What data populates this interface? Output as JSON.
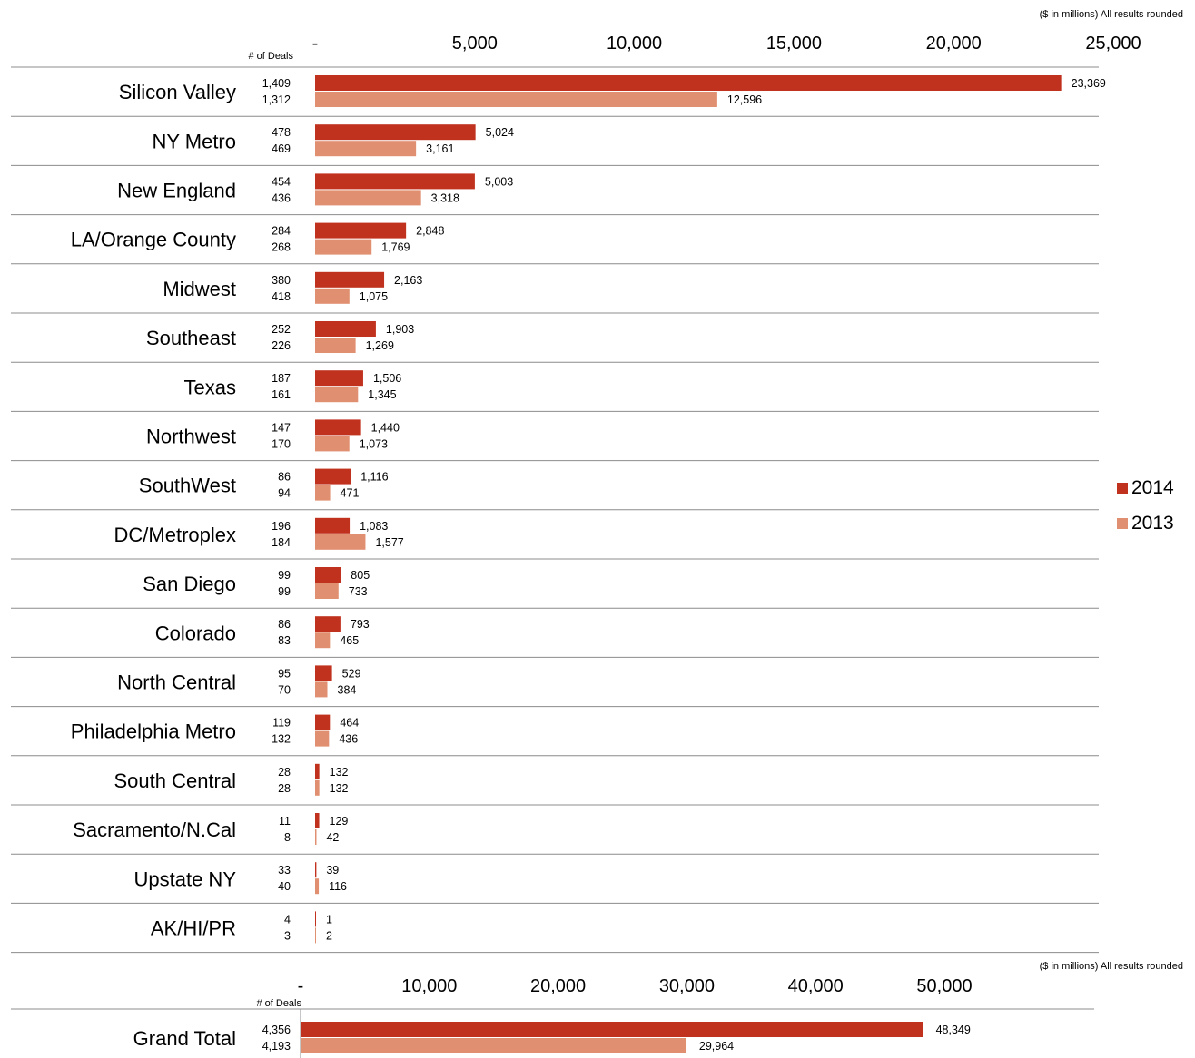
{
  "chart_data": [
    {
      "type": "bar",
      "orientation": "horizontal",
      "note": "($ in millions) All results rounded",
      "deals_label": "# of  Deals",
      "xlim": [
        0,
        25000
      ],
      "ticks": [
        "-",
        "5,000",
        "10,000",
        "15,000",
        "20,000",
        "25,000"
      ],
      "tick_values": [
        0,
        5000,
        10000,
        15000,
        20000,
        25000
      ],
      "legend_position": "right",
      "series": [
        {
          "name": "2014",
          "color": "#c0311e"
        },
        {
          "name": "2013",
          "color": "#e08f70"
        }
      ],
      "categories": [
        {
          "label": "Silicon Valley",
          "deals": [
            "1,409",
            "1,312"
          ],
          "values": [
            23369,
            12596
          ],
          "labels": [
            "23,369",
            "12,596"
          ]
        },
        {
          "label": "NY Metro",
          "deals": [
            "478",
            "469"
          ],
          "values": [
            5024,
            3161
          ],
          "labels": [
            "5,024",
            "3,161"
          ]
        },
        {
          "label": "New England",
          "deals": [
            "454",
            "436"
          ],
          "values": [
            5003,
            3318
          ],
          "labels": [
            "5,003",
            "3,318"
          ]
        },
        {
          "label": "LA/Orange County",
          "deals": [
            "284",
            "268"
          ],
          "values": [
            2848,
            1769
          ],
          "labels": [
            "2,848",
            "1,769"
          ]
        },
        {
          "label": "Midwest",
          "deals": [
            "380",
            "418"
          ],
          "values": [
            2163,
            1075
          ],
          "labels": [
            "2,163",
            "1,075"
          ]
        },
        {
          "label": "Southeast",
          "deals": [
            "252",
            "226"
          ],
          "values": [
            1903,
            1269
          ],
          "labels": [
            "1,903",
            "1,269"
          ]
        },
        {
          "label": "Texas",
          "deals": [
            "187",
            "161"
          ],
          "values": [
            1506,
            1345
          ],
          "labels": [
            "1,506",
            "1,345"
          ]
        },
        {
          "label": "Northwest",
          "deals": [
            "147",
            "170"
          ],
          "values": [
            1440,
            1073
          ],
          "labels": [
            "1,440",
            "1,073"
          ]
        },
        {
          "label": "SouthWest",
          "deals": [
            "86",
            "94"
          ],
          "values": [
            1116,
            471
          ],
          "labels": [
            "1,116",
            "471"
          ]
        },
        {
          "label": "DC/Metroplex",
          "deals": [
            "196",
            "184"
          ],
          "values": [
            1083,
            1577
          ],
          "labels": [
            "1,083",
            "1,577"
          ]
        },
        {
          "label": "San Diego",
          "deals": [
            "99",
            "99"
          ],
          "values": [
            805,
            733
          ],
          "labels": [
            "805",
            "733"
          ]
        },
        {
          "label": "Colorado",
          "deals": [
            "86",
            "83"
          ],
          "values": [
            793,
            465
          ],
          "labels": [
            "793",
            "465"
          ]
        },
        {
          "label": "North Central",
          "deals": [
            "95",
            "70"
          ],
          "values": [
            529,
            384
          ],
          "labels": [
            "529",
            "384"
          ]
        },
        {
          "label": "Philadelphia Metro",
          "deals": [
            "119",
            "132"
          ],
          "values": [
            464,
            436
          ],
          "labels": [
            "464",
            "436"
          ]
        },
        {
          "label": "South Central",
          "deals": [
            "28",
            "28"
          ],
          "values": [
            132,
            132
          ],
          "labels": [
            "132",
            "132"
          ]
        },
        {
          "label": "Sacramento/N.Cal",
          "deals": [
            "11",
            "8"
          ],
          "values": [
            129,
            42
          ],
          "labels": [
            "129",
            "42"
          ]
        },
        {
          "label": "Upstate NY",
          "deals": [
            "33",
            "40"
          ],
          "values": [
            39,
            116
          ],
          "labels": [
            "39",
            "116"
          ]
        },
        {
          "label": "AK/HI/PR",
          "deals": [
            "4",
            "3"
          ],
          "values": [
            1,
            2
          ],
          "labels": [
            "1",
            "2"
          ]
        }
      ]
    },
    {
      "type": "bar",
      "orientation": "horizontal",
      "note": "($ in millions) All results rounded",
      "deals_label": "# of  Deals",
      "xlim": [
        0,
        50000
      ],
      "ticks": [
        "-",
        "10,000",
        "20,000",
        "30,000",
        "40,000",
        "50,000"
      ],
      "tick_values": [
        0,
        10000,
        20000,
        30000,
        40000,
        50000
      ],
      "series": [
        {
          "name": "2014",
          "color": "#c0311e"
        },
        {
          "name": "2013",
          "color": "#e08f70"
        }
      ],
      "categories": [
        {
          "label": "Grand Total",
          "deals": [
            "4,356",
            "4,193"
          ],
          "values": [
            48349,
            29964
          ],
          "labels": [
            "48,349",
            "29,964"
          ]
        }
      ]
    }
  ]
}
